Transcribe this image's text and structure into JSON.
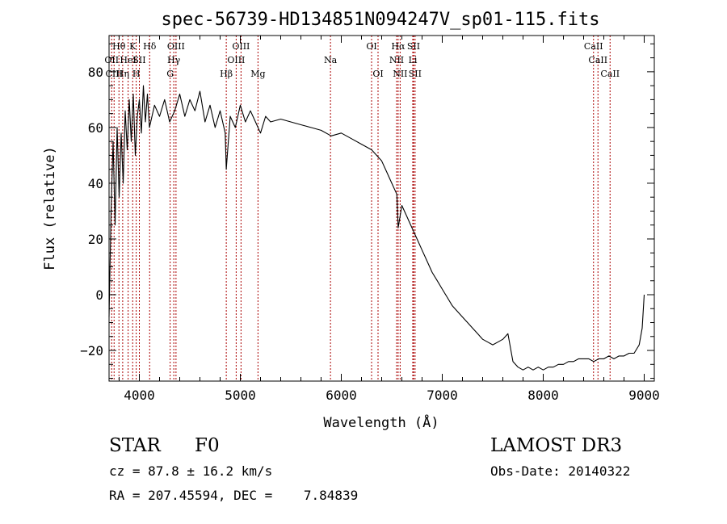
{
  "chart_data": {
    "type": "line",
    "title": "spec-56739-HD134851N094247V_sp01-115.fits",
    "xlabel": "Wavelength (Å)",
    "ylabel": "Flux (relative)",
    "xlim": [
      3700,
      9100
    ],
    "ylim": [
      -31,
      93
    ],
    "xticks": [
      4000,
      5000,
      6000,
      7000,
      8000,
      9000
    ],
    "xtick_labels": [
      "4000",
      "5000",
      "6000",
      "7000",
      "8000",
      "9000"
    ],
    "yticks": [
      -20,
      0,
      20,
      40,
      60,
      80
    ],
    "ytick_labels": [
      "−20",
      "0",
      "20",
      "40",
      "60",
      "80"
    ],
    "grid": false,
    "series": [
      {
        "name": "spectrum",
        "color": "#000000",
        "points": [
          [
            3700,
            -8
          ],
          [
            3720,
            30
          ],
          [
            3740,
            55
          ],
          [
            3760,
            25
          ],
          [
            3780,
            60
          ],
          [
            3800,
            35
          ],
          [
            3820,
            58
          ],
          [
            3840,
            40
          ],
          [
            3860,
            66
          ],
          [
            3880,
            52
          ],
          [
            3900,
            70
          ],
          [
            3920,
            55
          ],
          [
            3940,
            72
          ],
          [
            3960,
            50
          ],
          [
            3980,
            64
          ],
          [
            4000,
            70
          ],
          [
            4020,
            58
          ],
          [
            4040,
            75
          ],
          [
            4060,
            62
          ],
          [
            4080,
            72
          ],
          [
            4100,
            60
          ],
          [
            4150,
            68
          ],
          [
            4200,
            64
          ],
          [
            4250,
            70
          ],
          [
            4300,
            62
          ],
          [
            4350,
            66
          ],
          [
            4400,
            72
          ],
          [
            4450,
            64
          ],
          [
            4500,
            70
          ],
          [
            4550,
            66
          ],
          [
            4600,
            73
          ],
          [
            4650,
            62
          ],
          [
            4700,
            68
          ],
          [
            4750,
            60
          ],
          [
            4800,
            66
          ],
          [
            4850,
            58
          ],
          [
            4861,
            45
          ],
          [
            4900,
            64
          ],
          [
            4950,
            60
          ],
          [
            5000,
            68
          ],
          [
            5050,
            62
          ],
          [
            5100,
            66
          ],
          [
            5150,
            62
          ],
          [
            5200,
            58
          ],
          [
            5250,
            64
          ],
          [
            5300,
            62
          ],
          [
            5400,
            63
          ],
          [
            5500,
            62
          ],
          [
            5600,
            61
          ],
          [
            5700,
            60
          ],
          [
            5800,
            59
          ],
          [
            5900,
            57
          ],
          [
            6000,
            58
          ],
          [
            6100,
            56
          ],
          [
            6200,
            54
          ],
          [
            6300,
            52
          ],
          [
            6400,
            48
          ],
          [
            6450,
            44
          ],
          [
            6500,
            40
          ],
          [
            6550,
            36
          ],
          [
            6563,
            24
          ],
          [
            6600,
            32
          ],
          [
            6650,
            28
          ],
          [
            6700,
            24
          ],
          [
            6750,
            20
          ],
          [
            6800,
            16
          ],
          [
            6850,
            12
          ],
          [
            6900,
            8
          ],
          [
            6950,
            5
          ],
          [
            7000,
            2
          ],
          [
            7050,
            -1
          ],
          [
            7100,
            -4
          ],
          [
            7150,
            -6
          ],
          [
            7200,
            -8
          ],
          [
            7250,
            -10
          ],
          [
            7300,
            -12
          ],
          [
            7350,
            -14
          ],
          [
            7400,
            -16
          ],
          [
            7450,
            -17
          ],
          [
            7500,
            -18
          ],
          [
            7550,
            -17
          ],
          [
            7600,
            -16
          ],
          [
            7650,
            -14
          ],
          [
            7700,
            -24
          ],
          [
            7750,
            -26
          ],
          [
            7800,
            -27
          ],
          [
            7850,
            -26
          ],
          [
            7900,
            -27
          ],
          [
            7950,
            -26
          ],
          [
            8000,
            -27
          ],
          [
            8050,
            -26
          ],
          [
            8100,
            -26
          ],
          [
            8150,
            -25
          ],
          [
            8200,
            -25
          ],
          [
            8250,
            -24
          ],
          [
            8300,
            -24
          ],
          [
            8350,
            -23
          ],
          [
            8400,
            -23
          ],
          [
            8450,
            -23
          ],
          [
            8500,
            -24
          ],
          [
            8550,
            -23
          ],
          [
            8600,
            -23
          ],
          [
            8650,
            -22
          ],
          [
            8700,
            -23
          ],
          [
            8750,
            -22
          ],
          [
            8800,
            -22
          ],
          [
            8850,
            -21
          ],
          [
            8900,
            -21
          ],
          [
            8950,
            -18
          ],
          [
            8980,
            -12
          ],
          [
            9000,
            0
          ]
        ]
      }
    ],
    "lines": [
      {
        "wavelength": 3726,
        "label": "OII",
        "row": 2
      },
      {
        "wavelength": 3750,
        "label": "CIII",
        "row": 3
      },
      {
        "wavelength": 3798,
        "label": "Hθ",
        "row": 1
      },
      {
        "wavelength": 3835,
        "label": "Hη",
        "row": 3
      },
      {
        "wavelength": 3889,
        "label": "HeI",
        "row": 2
      },
      {
        "wavelength": 3934,
        "label": "K",
        "row": 1
      },
      {
        "wavelength": 3969,
        "label": "H",
        "row": 3
      },
      {
        "wavelength": 4000,
        "label": "SII",
        "row": 2
      },
      {
        "wavelength": 4102,
        "label": "Hδ",
        "row": 1
      },
      {
        "wavelength": 4305,
        "label": "G",
        "row": 3
      },
      {
        "wavelength": 4341,
        "label": "Hγ",
        "row": 2
      },
      {
        "wavelength": 4363,
        "label": "OIII",
        "row": 1
      },
      {
        "wavelength": 4861,
        "label": "Hβ",
        "row": 3
      },
      {
        "wavelength": 4959,
        "label": "OIII",
        "row": 2
      },
      {
        "wavelength": 5007,
        "label": "OIII",
        "row": 1
      },
      {
        "wavelength": 5175,
        "label": "Mg",
        "row": 3
      },
      {
        "wavelength": 5893,
        "label": "Na",
        "row": 2
      },
      {
        "wavelength": 6300,
        "label": "OI",
        "row": 1
      },
      {
        "wavelength": 6364,
        "label": "OI",
        "row": 3
      },
      {
        "wavelength": 6548,
        "label": "NII",
        "row": 2
      },
      {
        "wavelength": 6563,
        "label": "Hα",
        "row": 1
      },
      {
        "wavelength": 6583,
        "label": "NII",
        "row": 3
      },
      {
        "wavelength": 6708,
        "label": "Li",
        "row": 2
      },
      {
        "wavelength": 6716,
        "label": "SII",
        "row": 1
      },
      {
        "wavelength": 6731,
        "label": "SII",
        "row": 3
      },
      {
        "wavelength": 8498,
        "label": "CaII",
        "row": 1
      },
      {
        "wavelength": 8542,
        "label": "CaII",
        "row": 2
      },
      {
        "wavelength": 8662,
        "label": "CaII",
        "row": 3
      }
    ],
    "line_color": "#aa0000"
  },
  "info": {
    "class": "STAR",
    "subclass": "F0",
    "survey": "LAMOST DR3",
    "cz": "cz = 87.8 ± 16.2 km/s",
    "obs_date": "Obs-Date: 20140322",
    "coords": "RA = 207.45594, DEC =    7.84839"
  }
}
